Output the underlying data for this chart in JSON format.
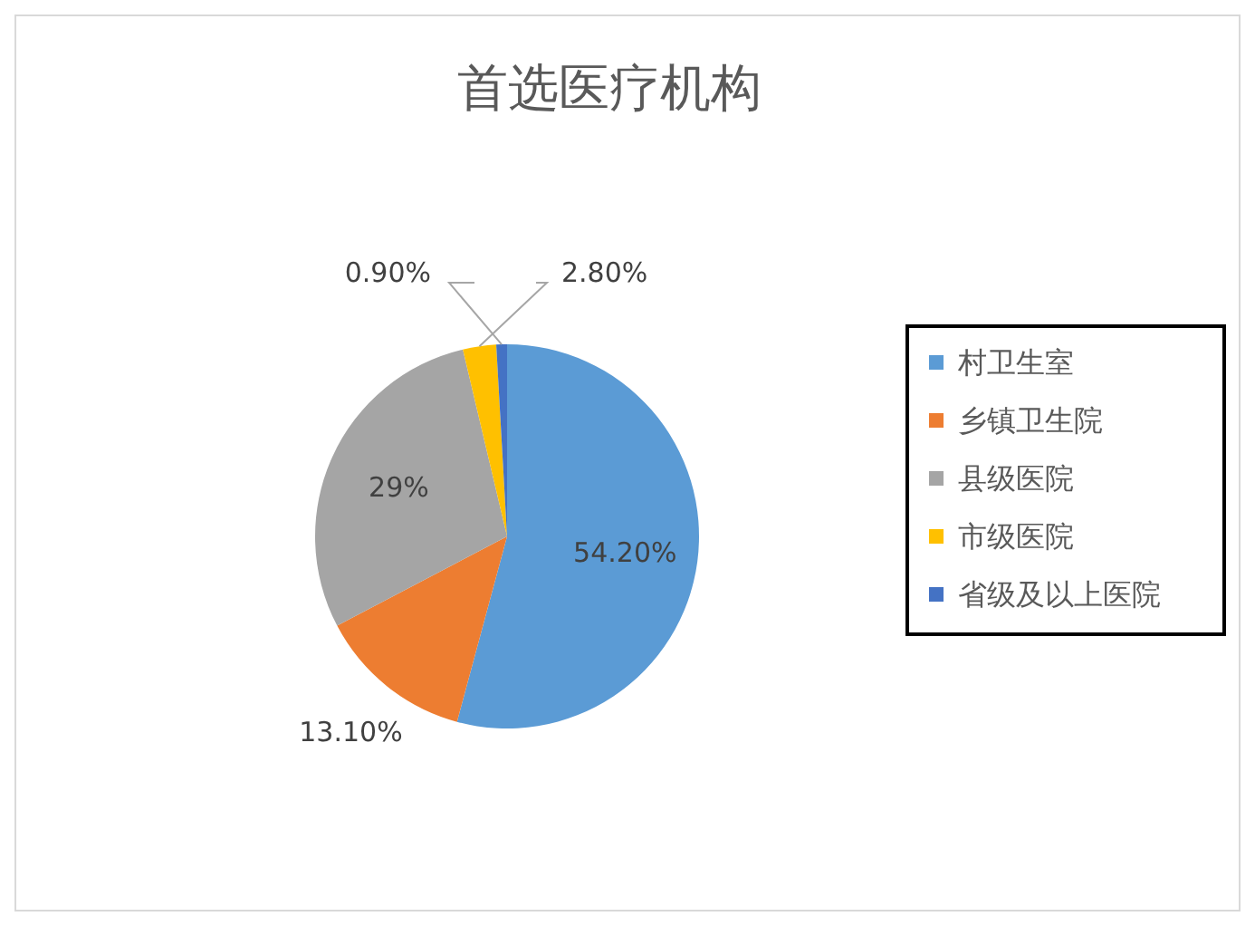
{
  "chart_data": {
    "type": "pie",
    "title": "首选医疗机构",
    "categories": [
      "村卫生室",
      "乡镇卫生院",
      "县级医院",
      "市级医院",
      "省级及以上医院"
    ],
    "values": [
      54.2,
      13.1,
      29,
      2.8,
      0.9
    ],
    "value_labels": [
      "54.20%",
      "13.10%",
      "29%",
      "2.80%",
      "0.90%"
    ],
    "colors": [
      "#5b9bd5",
      "#ed7d31",
      "#a5a5a5",
      "#ffc000",
      "#4472c4"
    ],
    "legend": "right"
  }
}
